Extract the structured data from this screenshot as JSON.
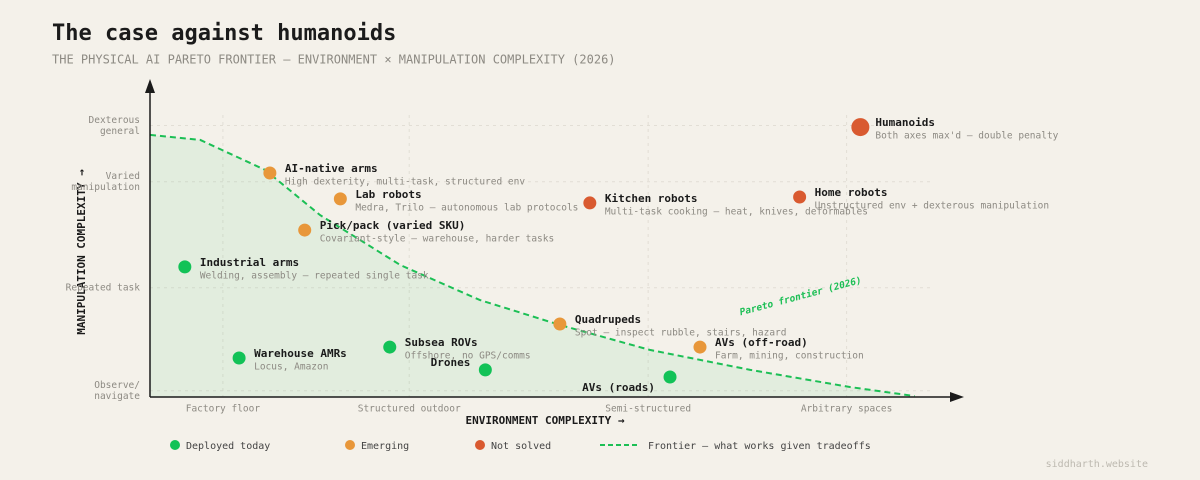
{
  "chart_data": {
    "type": "scatter",
    "title": "The case against humanoids",
    "subtitle": "THE PHYSICAL AI PARETO FRONTIER — ENVIRONMENT × MANIPULATION COMPLEXITY (2026)",
    "xlabel": "ENVIRONMENT COMPLEXITY →",
    "ylabel": "MANIPULATION COMPLEXITY →",
    "xlim": [
      0,
      10
    ],
    "ylim": [
      0,
      10
    ],
    "xticks": [
      {
        "value": 0.9,
        "label": "Factory floor"
      },
      {
        "value": 3.2,
        "label": "Structured outdoor"
      },
      {
        "value": 6.15,
        "label": "Semi-structured"
      },
      {
        "value": 8.6,
        "label": "Arbitrary spaces"
      }
    ],
    "yticks": [
      {
        "value": 0.2,
        "label": "Observe/ navigate"
      },
      {
        "value": 3.5,
        "label": "Repeated task"
      },
      {
        "value": 6.9,
        "label": "Varied manipulation"
      },
      {
        "value": 8.7,
        "label": "Dexterous general"
      }
    ],
    "grid": true,
    "series": [
      {
        "name": "Deployed today",
        "color": "#12c257",
        "x": [
          0.43,
          1.1,
          2.96,
          4.14,
          6.42
        ],
        "y": [
          4.17,
          1.25,
          1.6,
          0.87,
          0.64
        ],
        "labels": [
          "Industrial arms",
          "Warehouse AMRs",
          "Subsea ROVs",
          "Drones",
          "AVs (roads)"
        ],
        "descriptions": [
          "Welding, assembly — repeated single task",
          "Locus, Amazon",
          "Offshore, no GPS/comms",
          null,
          null
        ]
      },
      {
        "name": "Emerging",
        "color": "#e8973a",
        "x": [
          1.48,
          2.35,
          1.91,
          5.06,
          6.79
        ],
        "y": [
          7.18,
          6.35,
          5.35,
          2.34,
          1.6
        ],
        "labels": [
          "AI-native arms",
          "Lab robots",
          "Pick/pack (varied SKU)",
          "Quadrupeds",
          "AVs (off-road)"
        ],
        "descriptions": [
          "High dexterity, multi-task, structured env",
          "Medra, Trilo — autonomous lab protocols",
          "Covariant-style — warehouse, harder tasks",
          "Spot — inspect rubble, stairs, hazard",
          "Farm, mining, construction"
        ]
      },
      {
        "name": "Not solved",
        "color": "#d95a30",
        "x": [
          5.43,
          8.02,
          8.77
        ],
        "y": [
          6.22,
          6.41,
          8.65
        ],
        "labels": [
          "Kitchen robots",
          "Home robots",
          "Humanoids"
        ],
        "descriptions": [
          "Multi-task cooking — heat, knives, deformables",
          "Unstructured env + dexterous manipulation",
          "Both axes max'd — double penalty"
        ]
      }
    ],
    "frontier": {
      "name": "Frontier — what works given tradeoffs",
      "annotation": "Pareto frontier (2026)",
      "color": "#1cbf55",
      "x": [
        0,
        0.62,
        1.42,
        2.1,
        3.09,
        4.07,
        5.06,
        6.17,
        7.41,
        8.64,
        9.44
      ],
      "y": [
        8.4,
        8.24,
        7.28,
        5.83,
        4.23,
        3.11,
        2.31,
        1.51,
        0.87,
        0.32,
        0.03
      ]
    },
    "source": "siddharth.website"
  }
}
